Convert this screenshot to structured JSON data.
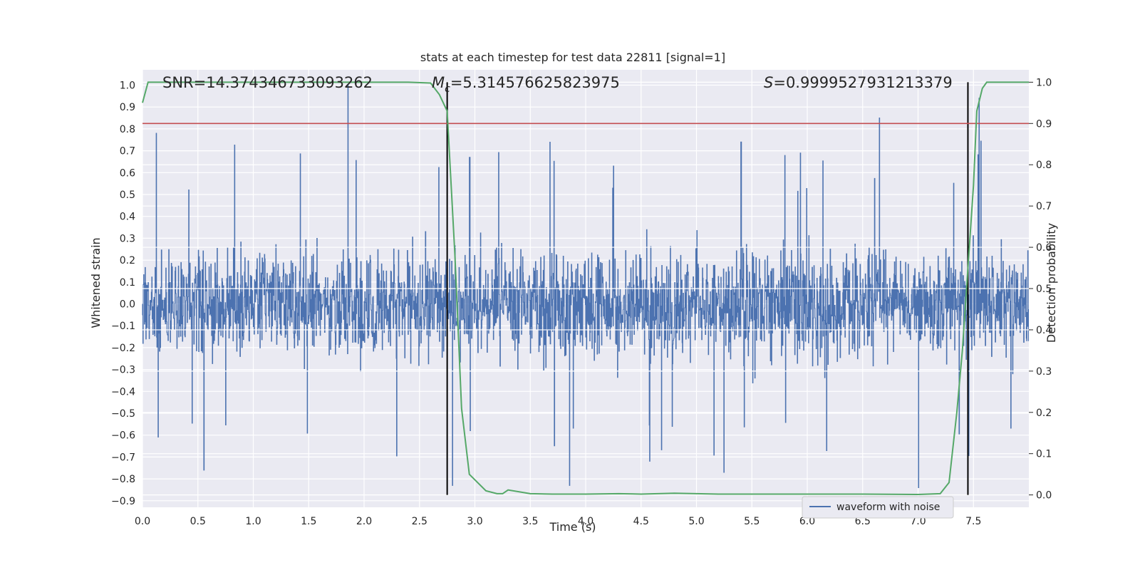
{
  "chart_data": {
    "type": "line",
    "title": "stats at each timestep for test data 22811 [signal=1]",
    "xlabel": "Time (s)",
    "ylabel_left": "Whitened strain",
    "ylabel_right": "Detection probability",
    "xlim": [
      0,
      8.0
    ],
    "ylim_left": [
      -0.93,
      1.07
    ],
    "ylim_right": [
      -0.03,
      1.03
    ],
    "x_ticks": [
      0.0,
      0.5,
      1.0,
      1.5,
      2.0,
      2.5,
      3.0,
      3.5,
      4.0,
      4.5,
      5.0,
      5.5,
      6.0,
      6.5,
      7.0,
      7.5
    ],
    "x_tick_labels": [
      "0.0",
      "0.5",
      "1.0",
      "1.5",
      "2.0",
      "2.5",
      "3.0",
      "3.5",
      "4.0",
      "4.5",
      "5.0",
      "5.5",
      "6.0",
      "6.5",
      "7.0",
      "7.5"
    ],
    "y_left_ticks": [
      1.0,
      0.9,
      0.8,
      0.7,
      0.6,
      0.5,
      0.4,
      0.3,
      0.2,
      0.1,
      0.0,
      -0.1,
      -0.2,
      -0.3,
      -0.4,
      -0.5,
      -0.6,
      -0.7,
      -0.8,
      -0.9
    ],
    "y_left_tick_labels": [
      "1.0",
      "0.9",
      "0.8",
      "0.7",
      "0.6",
      "0.5",
      "0.4",
      "0.3",
      "0.2",
      "0.1",
      "0.0",
      "−0.1",
      "−0.2",
      "−0.3",
      "−0.4",
      "−0.5",
      "−0.6",
      "−0.7",
      "−0.8",
      "−0.9"
    ],
    "y_right_ticks": [
      1.0,
      0.9,
      0.8,
      0.7,
      0.6,
      0.5,
      0.4,
      0.3,
      0.2,
      0.1,
      0.0
    ],
    "y_right_tick_labels": [
      "1.0",
      "0.9",
      "0.8",
      "0.7",
      "0.6",
      "0.5",
      "0.4",
      "0.3",
      "0.2",
      "0.1",
      "0.0"
    ],
    "annotations": {
      "snr": "SNR=14.374346733093262",
      "mc_symbol": "M",
      "mc_subscript": "c",
      "mc_value": "=5.314576625823975",
      "s_symbol": "S",
      "s_value": "=0.9999527931213379"
    },
    "legend": {
      "label": "waveform with noise",
      "placement": "lower-right"
    },
    "vertical_lines_x": [
      2.75,
      7.45
    ],
    "threshold_line_probability": 0.9,
    "series": [
      {
        "name": "waveform with noise",
        "color": "#4c72b0",
        "description": "dense noisy whitened strain sampled over 0–8 s",
        "peaks": [
          {
            "x": 0.12,
            "y": 0.78
          },
          {
            "x": 1.85,
            "y": 1.0
          },
          {
            "x": 2.95,
            "y": 0.67
          },
          {
            "x": 4.25,
            "y": 0.63
          },
          {
            "x": 5.4,
            "y": 0.74
          },
          {
            "x": 6.65,
            "y": 0.85
          },
          {
            "x": 7.55,
            "y": 0.94
          },
          {
            "x": 0.55,
            "y": -0.76
          },
          {
            "x": 2.8,
            "y": -0.83
          },
          {
            "x": 3.85,
            "y": -0.83
          },
          {
            "x": 5.25,
            "y": -0.77
          },
          {
            "x": 7.0,
            "y": -0.84
          }
        ]
      },
      {
        "name": "detection probability",
        "color": "#55a868",
        "axis": "right",
        "x": [
          0.0,
          0.05,
          0.2,
          0.5,
          1.0,
          1.5,
          2.0,
          2.4,
          2.6,
          2.68,
          2.75,
          2.82,
          2.88,
          2.95,
          3.1,
          3.2,
          3.25,
          3.3,
          3.5,
          3.7,
          4.0,
          4.3,
          4.5,
          4.8,
          5.2,
          6.0,
          6.5,
          7.0,
          7.2,
          7.28,
          7.35,
          7.4,
          7.45,
          7.5,
          7.53,
          7.58,
          7.62,
          7.7,
          7.9,
          8.0
        ],
        "values": [
          0.95,
          1.0,
          1.0,
          1.0,
          1.0,
          1.0,
          1.0,
          1.0,
          0.998,
          0.97,
          0.93,
          0.58,
          0.21,
          0.05,
          0.01,
          0.003,
          0.003,
          0.012,
          0.003,
          0.002,
          0.002,
          0.003,
          0.002,
          0.004,
          0.002,
          0.002,
          0.002,
          0.001,
          0.003,
          0.03,
          0.2,
          0.35,
          0.55,
          0.75,
          0.93,
          0.985,
          1.0,
          1.0,
          1.0,
          1.0
        ]
      }
    ],
    "colors": {
      "background": "#eaeaf2",
      "grid": "#ffffff",
      "threshold": "#c44e52",
      "vline": "#000000"
    }
  }
}
